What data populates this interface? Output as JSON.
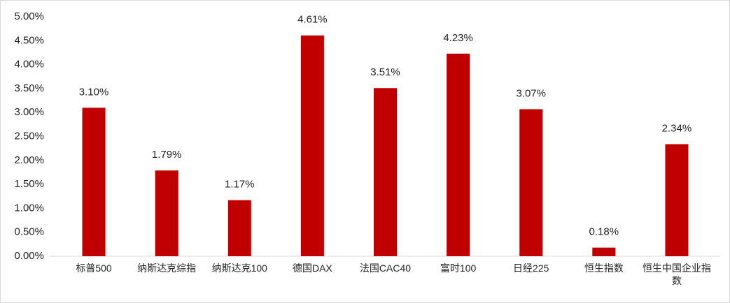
{
  "chart_data": {
    "type": "bar",
    "categories": [
      "标普500",
      "纳斯达克综指",
      "纳斯达克100",
      "德国DAX",
      "法国CAC40",
      "富时100",
      "日经225",
      "恒生指数",
      "恒生中国企业指数"
    ],
    "values": [
      3.1,
      1.79,
      1.17,
      4.61,
      3.51,
      4.23,
      3.07,
      0.18,
      2.34
    ],
    "value_labels": [
      "3.10%",
      "1.79%",
      "1.17%",
      "4.61%",
      "3.51%",
      "4.23%",
      "3.07%",
      "0.18%",
      "2.34%"
    ],
    "color": "#c00000",
    "ylim": [
      0,
      5
    ],
    "yticks": [
      {
        "value": 0,
        "label": "0.00%"
      },
      {
        "value": 0.5,
        "label": "0.50%"
      },
      {
        "value": 1,
        "label": "1.00%"
      },
      {
        "value": 1.5,
        "label": "1.50%"
      },
      {
        "value": 2,
        "label": "2.00%"
      },
      {
        "value": 2.5,
        "label": "2.50%"
      },
      {
        "value": 3,
        "label": "3.00%"
      },
      {
        "value": 3.5,
        "label": "3.50%"
      },
      {
        "value": 4,
        "label": "4.00%"
      },
      {
        "value": 4.5,
        "label": "4.50%"
      },
      {
        "value": 5,
        "label": "5.00%"
      }
    ],
    "grid": false
  }
}
